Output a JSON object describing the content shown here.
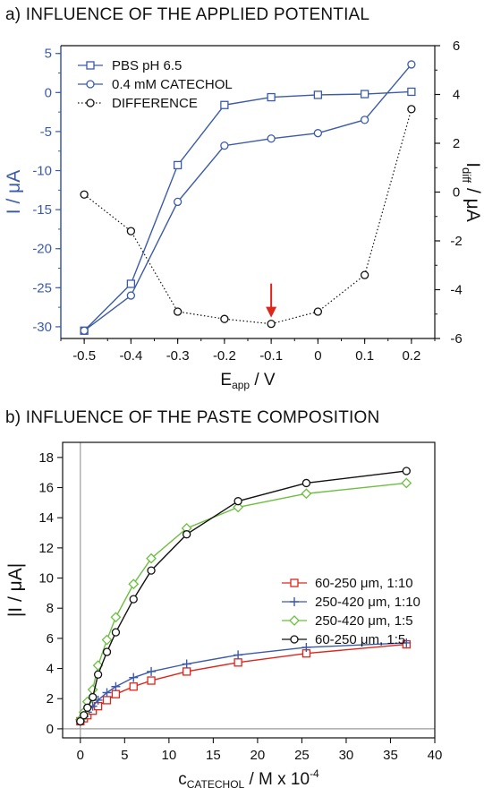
{
  "chart_data": [
    {
      "type": "line",
      "title": "a) INFLUENCE OF THE APPLIED POTENTIAL",
      "xlabel_main": "E",
      "xlabel_sub": "app",
      "xlabel_unit": " / V",
      "ylabel_left": "I / μA",
      "ylabel_right_main": "I",
      "ylabel_right_sub": "diff",
      "ylabel_right_unit": " / μA",
      "xlim": [
        -0.55,
        0.25
      ],
      "ylim_left": [
        -31.5,
        6
      ],
      "ylim_right": [
        -6,
        6
      ],
      "x_ticks": [
        "-0.5",
        "-0.4",
        "-0.3",
        "-0.2",
        "-0.1",
        "0",
        "0.1",
        "0.2"
      ],
      "y_left_ticks": [
        "5",
        "0",
        "-5",
        "-10",
        "-15",
        "-20",
        "-25",
        "-30"
      ],
      "y_right_ticks": [
        "6",
        "4",
        "2",
        "0",
        "-2",
        "-4",
        "-6"
      ],
      "legend_position": "top-left",
      "colors": {
        "axis_left": "#3b5ba9",
        "series_blue": "#3b5ba9",
        "difference": "#111111",
        "arrow": "#e0251b"
      },
      "series": [
        {
          "name": "PBS pH 6.5",
          "axis": "left",
          "marker": "square",
          "x": [
            -0.5,
            -0.4,
            -0.3,
            -0.2,
            -0.1,
            0,
            0.1,
            0.2
          ],
          "y": [
            -30.5,
            -24.5,
            -9.3,
            -1.6,
            -0.6,
            -0.3,
            -0.2,
            0.1
          ]
        },
        {
          "name": "0.4 mM CATECHOL",
          "axis": "left",
          "marker": "circle",
          "x": [
            -0.5,
            -0.4,
            -0.3,
            -0.2,
            -0.1,
            0,
            0.1,
            0.2
          ],
          "y": [
            -30.5,
            -26,
            -14,
            -6.8,
            -5.9,
            -5.2,
            -3.5,
            3.6
          ]
        },
        {
          "name": "DIFFERENCE",
          "axis": "right",
          "marker": "circle",
          "dotted": true,
          "x": [
            -0.5,
            -0.4,
            -0.3,
            -0.2,
            -0.1,
            0,
            0.1,
            0.2
          ],
          "y": [
            -0.1,
            -1.6,
            -4.9,
            -5.2,
            -5.4,
            -4.9,
            -3.4,
            3.4
          ]
        }
      ],
      "annotations": [
        {
          "type": "arrow",
          "x": -0.1,
          "y_right": -5.4
        }
      ]
    },
    {
      "type": "line",
      "title": "b) INFLUENCE OF THE PASTE COMPOSITION",
      "xlabel_main": "c",
      "xlabel_sub": "CATECHOL",
      "xlabel_unit": " / M x 10",
      "xlabel_sup": "-4",
      "ylabel": "|I / μA|",
      "xlim": [
        -2,
        40
      ],
      "ylim": [
        -0.6,
        19
      ],
      "x_ticks": [
        "0",
        "5",
        "10",
        "15",
        "20",
        "25",
        "30",
        "35",
        "40"
      ],
      "y_ticks": [
        "0",
        "2",
        "4",
        "6",
        "8",
        "10",
        "12",
        "14",
        "16",
        "18"
      ],
      "legend_position": "center-right",
      "reference_lines": [
        "x=0",
        "y=0"
      ],
      "series": [
        {
          "name": "60-250 μm, 1:10",
          "color": "#e0251b",
          "marker": "square",
          "x": [
            0,
            0.4,
            0.8,
            1.4,
            2,
            3,
            4,
            6,
            8,
            12,
            17.8,
            25.5,
            36.8
          ],
          "y": [
            0.5,
            0.7,
            0.9,
            1.2,
            1.5,
            1.9,
            2.3,
            2.8,
            3.2,
            3.8,
            4.4,
            5.0,
            5.6
          ]
        },
        {
          "name": "250-420 μm, 1:10",
          "color": "#3b5ba9",
          "marker": "plus",
          "x": [
            0,
            0.4,
            0.8,
            1.4,
            2,
            3,
            4,
            6,
            8,
            12,
            17.8,
            25.5,
            36.8
          ],
          "y": [
            0.5,
            0.8,
            1.1,
            1.5,
            1.9,
            2.4,
            2.8,
            3.4,
            3.8,
            4.3,
            4.9,
            5.4,
            5.7
          ]
        },
        {
          "name": "250-420 μm, 1:5",
          "color": "#6cbf3f",
          "marker": "diamond",
          "x": [
            0,
            0.4,
            0.8,
            1.4,
            2,
            3,
            4,
            6,
            8,
            12,
            17.8,
            25.5,
            36.8
          ],
          "y": [
            0.6,
            1.1,
            1.8,
            2.6,
            4.2,
            5.9,
            7.4,
            9.6,
            11.3,
            13.3,
            14.7,
            15.6,
            16.3
          ]
        },
        {
          "name": "60-250 μm, 1:5",
          "color": "#111111",
          "marker": "circle",
          "x": [
            0,
            0.4,
            0.8,
            1.4,
            2,
            3,
            4,
            6,
            8,
            12,
            17.8,
            25.5,
            36.8
          ],
          "y": [
            0.5,
            0.9,
            1.4,
            2.1,
            3.6,
            5.1,
            6.4,
            8.6,
            10.5,
            12.9,
            15.1,
            16.3,
            17.1
          ]
        }
      ]
    }
  ]
}
